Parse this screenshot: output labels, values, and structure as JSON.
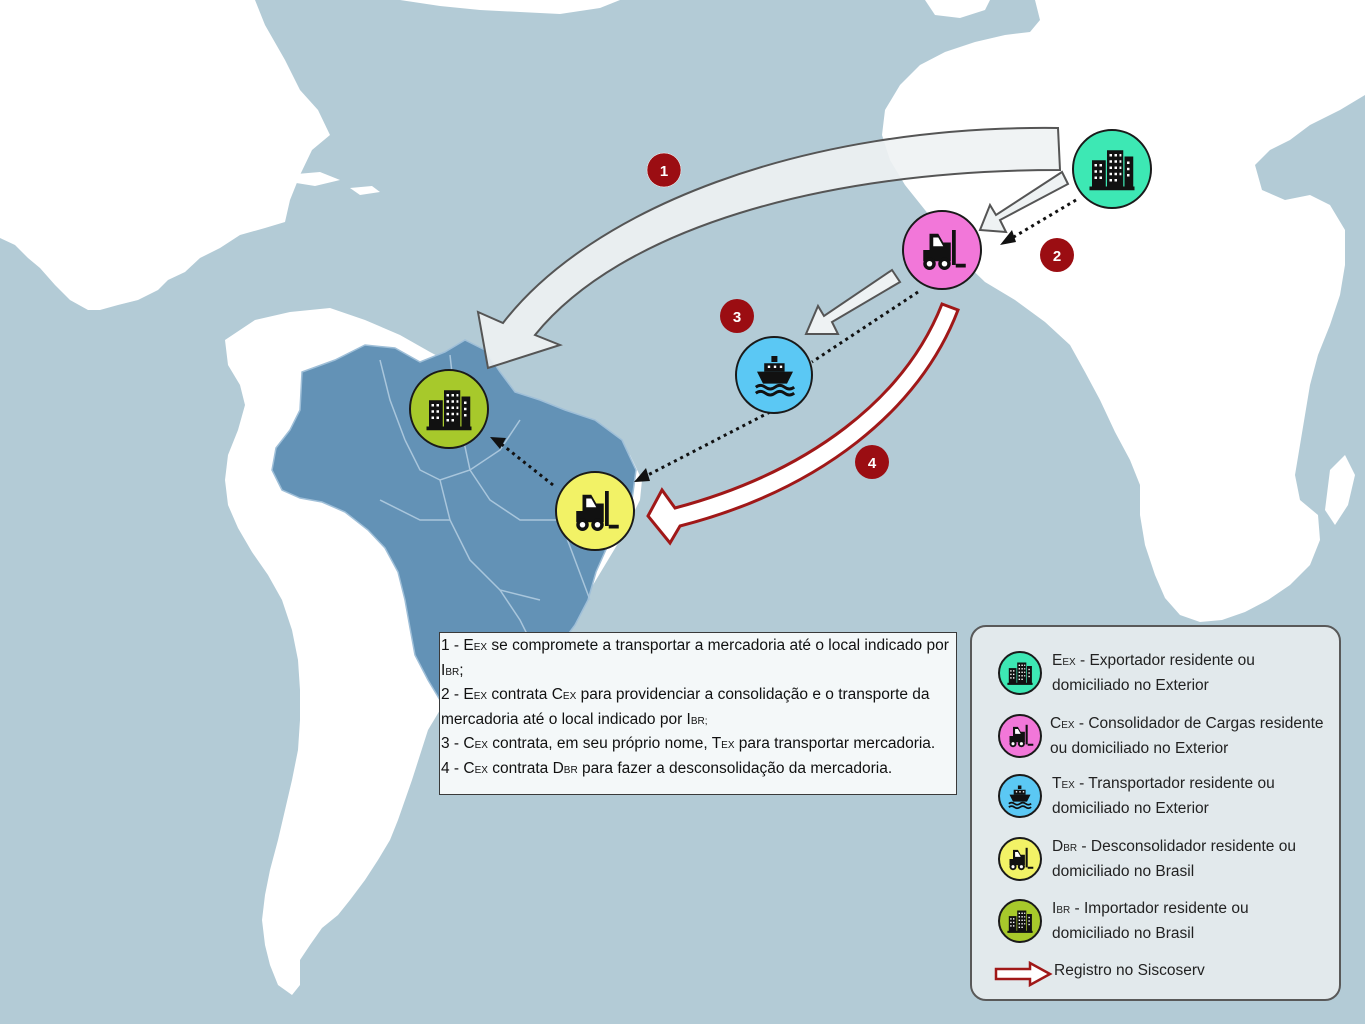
{
  "steps": [
    {
      "number": "1",
      "actor": "E",
      "actor_sub": "EX",
      "text": " se compromete a transportar a mercadoria até o local indicado por ",
      "target": "I",
      "target_sub": "BR",
      "end": ";"
    },
    {
      "number": "2",
      "actor": "E",
      "actor_sub": "EX",
      "text": " contrata ",
      "target": "C",
      "target_sub": "EX",
      "end": " para providenciar a consolidação e o transporte da mercadoria até o local indicado por I",
      "end_sub": "BR;"
    },
    {
      "number": "3",
      "actor": "C",
      "actor_sub": "EX",
      "text": " contrata, em seu próprio nome, ",
      "target": "T",
      "target_sub": "EX",
      "end": " para transportar mercadoria."
    },
    {
      "number": "4",
      "actor": "C",
      "actor_sub": "EX",
      "text": " contrata ",
      "target": "D",
      "target_sub": "BR",
      "end": " para fazer a desconsolidação da mercadoria."
    }
  ],
  "legend": [
    {
      "code": "E",
      "code_sub": "EX",
      "label": " - Exportador residente ou",
      "label2": "domiciliado no Exterior",
      "color": "#3de8b4",
      "icon": "building-icon"
    },
    {
      "code": "C",
      "code_sub": "EX",
      "label": " - Consolidador de Cargas residente",
      "label2": "ou domiciliado no Exterior",
      "color": "#f277d9",
      "icon": "forklift-icon"
    },
    {
      "code": "T",
      "code_sub": "EX",
      "label": " - Transportador residente ou",
      "label2": "domiciliado no Exterior",
      "color": "#5bc8f4",
      "icon": "ship-icon"
    },
    {
      "code": "D",
      "code_sub": "BR",
      "label": " - Desconsolidador residente ou",
      "label2": "domiciliado no Brasil",
      "color": "#f2f266",
      "icon": "forklift-icon"
    },
    {
      "code": "I",
      "code_sub": "BR",
      "label": " - Importador residente ou",
      "label2": "domiciliado no Brasil",
      "color": "#a7c92b",
      "icon": "building-icon"
    }
  ],
  "registro_label": "Registro no Siscoserv",
  "colors": {
    "ocean": "#b3cbd6",
    "land": "#ffffff",
    "brazil": "#6392b6",
    "badge": "#9b0d12",
    "registro_arrow": "#a01818"
  }
}
